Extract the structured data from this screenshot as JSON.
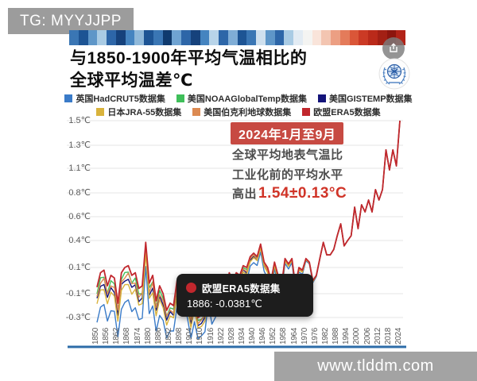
{
  "badge": {
    "text": "TG: MYYJJPP"
  },
  "header": {
    "title_line1": "与1850-1900年平均气温相比的",
    "title_line2": "全球平均温差℃"
  },
  "stripes": {
    "colors": [
      "#3a76b4",
      "#1d5494",
      "#5e96c8",
      "#a9cbe4",
      "#2d66a8",
      "#16427c",
      "#4584c0",
      "#90b9da",
      "#1d5494",
      "#3a76b4",
      "#0f3a6e",
      "#6fa3d2",
      "#2d66a8",
      "#16427c",
      "#4584c0",
      "#b8d4e9",
      "#2d66a8",
      "#7fadd6",
      "#1d5494",
      "#3a76b4",
      "#cfe0ee",
      "#5e96c8",
      "#2d66a8",
      "#a9cbe4",
      "#e2ebf3",
      "#f4f4f2",
      "#f9e4da",
      "#f3c5b1",
      "#ec9f83",
      "#e47b5a",
      "#da5638",
      "#cb3a25",
      "#ba2a1a",
      "#a32014",
      "#8c150e",
      "#b22318"
    ]
  },
  "legend": {
    "rows": [
      [
        {
          "label": "英国HadCRUT5数据集",
          "color": "#3a7bc8"
        },
        {
          "label": "美国NOAAGlobalTemp数据集",
          "color": "#3fbf5a"
        },
        {
          "label": "美国GISTEMP数据集",
          "color": "#14147a"
        }
      ],
      [
        {
          "label": "日本JRA-55数据集",
          "color": "#d9b33c"
        },
        {
          "label": "美国伯克利地球数据集",
          "color": "#dc8a52"
        },
        {
          "label": "欧盟ERA5数据集",
          "color": "#c1272d"
        }
      ]
    ]
  },
  "annotation": {
    "headline": "2024年1月至9月",
    "line1": "全球平均地表气温比",
    "line2": "工业化前的平均水平",
    "line3_prefix": "高出",
    "line3_value": "1.54±0.13°C"
  },
  "tooltip": {
    "series": "欧盟ERA5数据集",
    "value": "1886: -0.0381℃",
    "dot_color": "#c1272d"
  },
  "watermark": {
    "text": "www.tlddm.com"
  },
  "chart_data": {
    "type": "line",
    "title": "与1850-1900年平均气温相比的全球平均温差℃",
    "xlabel": "",
    "ylabel": "温差℃",
    "grid": true,
    "legend_position": "top",
    "y_tick_labels": [
      "1.5℃",
      "1.3℃",
      "1.1℃",
      "0.8℃",
      "0.6℃",
      "0.4℃",
      "0.1℃",
      "-0.1℃",
      "-0.3℃"
    ],
    "y_tick_values": [
      1.5,
      1.3,
      1.1,
      0.8,
      0.6,
      0.4,
      0.1,
      -0.1,
      -0.3
    ],
    "x_tick_labels": [
      "1850",
      "1856",
      "1862",
      "1868",
      "1874",
      "1880",
      "1886",
      "1892",
      "1898",
      "1904",
      "1910",
      "1916",
      "1922",
      "1928",
      "1934",
      "1940",
      "1946",
      "1952",
      "1958",
      "1964",
      "1970",
      "1976",
      "1982",
      "1988",
      "1994",
      "2000",
      "2006",
      "2012",
      "2018",
      "2024"
    ],
    "x_range": [
      1850,
      2024
    ],
    "years": [
      1850,
      1852,
      1854,
      1856,
      1858,
      1860,
      1862,
      1864,
      1866,
      1868,
      1870,
      1872,
      1874,
      1876,
      1878,
      1880,
      1882,
      1884,
      1886,
      1888,
      1890,
      1892,
      1894,
      1896,
      1898,
      1900,
      1902,
      1904,
      1906,
      1908,
      1910,
      1912,
      1914,
      1916,
      1918,
      1920,
      1922,
      1924,
      1926,
      1928,
      1930,
      1932,
      1934,
      1936,
      1938,
      1940,
      1942,
      1944,
      1946,
      1948,
      1950,
      1952,
      1954,
      1956,
      1958,
      1960,
      1962,
      1964,
      1966,
      1968,
      1970,
      1972,
      1974,
      1976,
      1978,
      1980,
      1982,
      1984,
      1986,
      1988,
      1990,
      1992,
      1994,
      1996,
      1998,
      2000,
      2002,
      2004,
      2006,
      2008,
      2010,
      2012,
      2014,
      2016,
      2018,
      2020,
      2022,
      2024
    ],
    "consensus_anomaly_C": [
      -0.05,
      0.06,
      0.08,
      -0.04,
      0.04,
      0.02,
      -0.18,
      0.06,
      0.1,
      0.12,
      0.04,
      0.06,
      -0.06,
      -0.04,
      0.38,
      -0.02,
      0.04,
      -0.16,
      -0.04,
      -0.1,
      -0.24,
      -0.18,
      -0.2,
      0.0,
      -0.06,
      0.04,
      -0.12,
      -0.28,
      -0.14,
      -0.3,
      -0.28,
      -0.24,
      0.0,
      -0.2,
      -0.14,
      -0.06,
      -0.1,
      -0.08,
      0.06,
      0.0,
      0.06,
      0.04,
      0.12,
      0.1,
      0.22,
      0.26,
      0.22,
      0.36,
      0.16,
      0.1,
      0.0,
      0.16,
      0.04,
      -0.04,
      0.2,
      0.14,
      0.2,
      -0.04,
      0.1,
      0.08,
      0.2,
      0.16,
      0.0,
      0.04,
      0.2,
      0.38,
      0.24,
      0.24,
      0.3,
      0.44,
      0.54,
      0.34,
      0.4,
      0.44,
      0.68,
      0.5,
      0.7,
      0.64,
      0.74,
      0.64,
      0.84,
      0.74,
      0.84,
      1.26,
      1.08,
      1.26,
      1.12,
      1.5
    ],
    "series": [
      {
        "name": "美国NOAAGlobalTemp数据集",
        "color": "#3fbf5a",
        "early_offset": -0.05
      },
      {
        "name": "美国GISTEMP数据集",
        "color": "#14147a",
        "early_offset": -0.1
      },
      {
        "name": "美国伯克利地球数据集",
        "color": "#dc8a52",
        "early_offset": -0.07
      },
      {
        "name": "英国HadCRUT5数据集",
        "color": "#3a7bc8",
        "early_offset": -0.28
      },
      {
        "name": "日本JRA-55数据集",
        "color": "#d9b33c",
        "early_offset": -0.14
      },
      {
        "name": "欧盟ERA5数据集",
        "color": "#c1272d",
        "early_offset": 0.0
      }
    ],
    "highlighted_point": {
      "series": "欧盟ERA5数据集",
      "year": 1886,
      "value_C": -0.0381
    },
    "callout": {
      "period": "2024年1月至9月",
      "anomaly_C": "1.54±0.13"
    }
  }
}
